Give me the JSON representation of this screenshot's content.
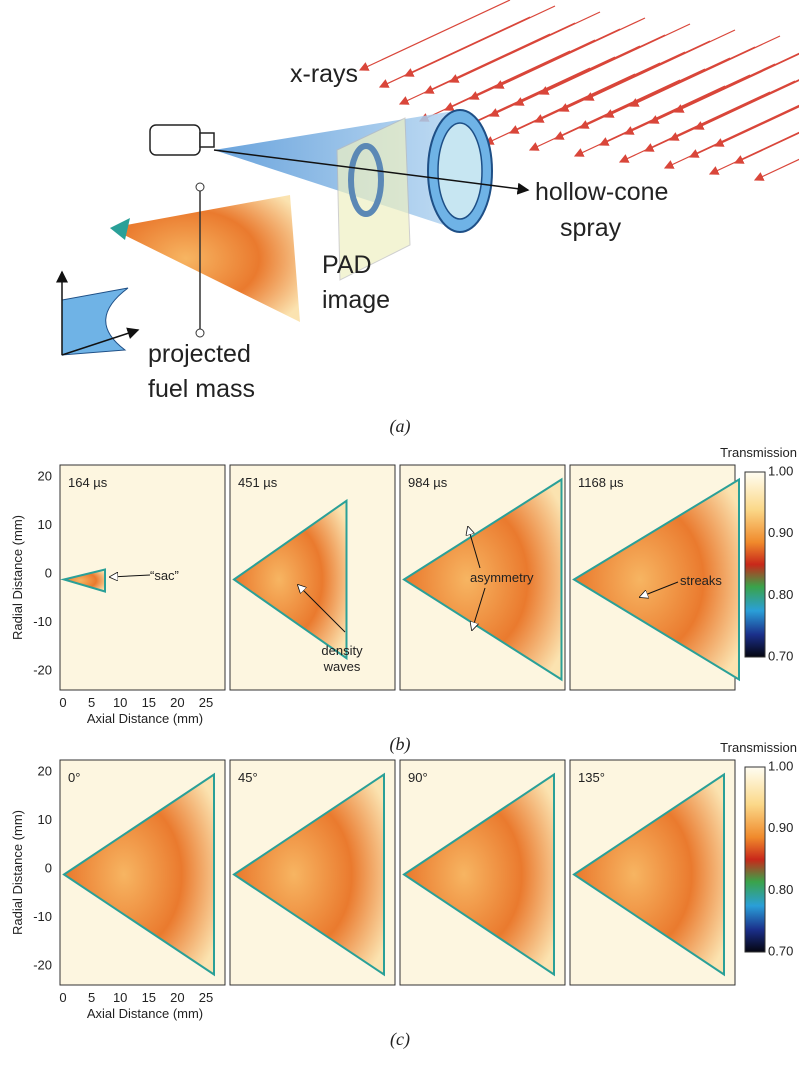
{
  "panel_a": {
    "xrays_label": "x-rays",
    "spray_label": [
      "hollow-cone",
      "spray"
    ],
    "pad_label": [
      "PAD",
      "image"
    ],
    "mass_label": [
      "projected",
      "fuel mass"
    ],
    "caption": "(a)"
  },
  "panel_b": {
    "caption": "(b)",
    "colorbar_title": "Transmission",
    "colorbar_ticks": [
      "1.00",
      "0.90",
      "0.80",
      "0.70"
    ],
    "y_label": "Radial Distance (mm)",
    "x_label": "Axial Distance (mm)",
    "yticks": [
      "20",
      "10",
      "0",
      "-10",
      "-20"
    ],
    "xticks": [
      "0",
      "5",
      "10",
      "15",
      "20",
      "25"
    ],
    "frames": [
      "164 µs",
      "451 µs",
      "984 µs",
      "1168 µs"
    ],
    "annotations": [
      "“sac”",
      [
        "density",
        "waves"
      ],
      "asymmetry",
      "streaks"
    ]
  },
  "panel_c": {
    "caption": "(c)",
    "colorbar_title": "Transmission",
    "colorbar_ticks": [
      "1.00",
      "0.90",
      "0.80",
      "0.70"
    ],
    "y_label": "Radial Distance (mm)",
    "x_label": "Axial Distance (mm)",
    "yticks": [
      "20",
      "10",
      "0",
      "-10",
      "-20"
    ],
    "xticks": [
      "0",
      "5",
      "10",
      "15",
      "20",
      "25"
    ],
    "frames": [
      "0°",
      "45°",
      "90°",
      "135°"
    ]
  }
}
